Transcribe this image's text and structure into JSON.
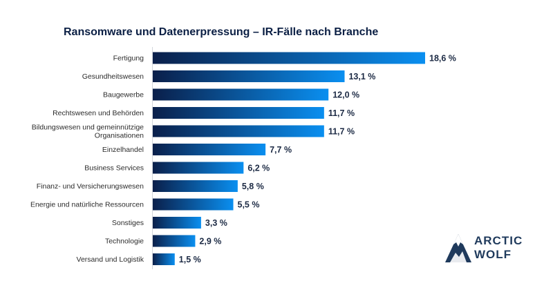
{
  "chart_data": {
    "type": "bar",
    "orientation": "horizontal",
    "title": "Ransomware und Datenerpressung – IR-Fälle nach Branche",
    "categories": [
      [
        "Fertigung"
      ],
      [
        "Gesundheitswesen"
      ],
      [
        "Baugewerbe"
      ],
      [
        "Rechtswesen und Behörden"
      ],
      [
        "Bildungswesen und gemeinnützige",
        "Organisationen"
      ],
      [
        "Einzelhandel"
      ],
      [
        "Business Services"
      ],
      [
        "Finanz- und Versicherungswesen"
      ],
      [
        "Energie und natürliche Ressourcen"
      ],
      [
        "Sonstiges"
      ],
      [
        "Technologie"
      ],
      [
        "Versand und Logistik"
      ]
    ],
    "values": [
      18.6,
      13.1,
      12.0,
      11.7,
      11.7,
      7.7,
      6.2,
      5.8,
      5.5,
      3.3,
      2.9,
      1.5
    ],
    "value_labels": [
      "18,6 %",
      "13,1 %",
      "12,0 %",
      "11,7 %",
      "11,7 %",
      "7,7 %",
      "6,2 %",
      "5,8 %",
      "5,5 %",
      "3,3 %",
      "2,9 %",
      "1,5 %"
    ],
    "unit": "%",
    "xlim": [
      0,
      18.6
    ],
    "xlabel": "",
    "ylabel": "",
    "grid": false,
    "bar_gradient": [
      "#0a1f4a",
      "#0a8ff0"
    ]
  },
  "brand": {
    "line1": "ARCTIC",
    "line2": "WOLF",
    "color": "#1f3a5c"
  }
}
